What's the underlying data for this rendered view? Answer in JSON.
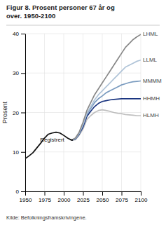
{
  "chart_data": {
    "type": "line",
    "title": [
      "Figur 8. Prosent personer 67 år og",
      "over. 1950-2100"
    ],
    "ylabel": "Prosent",
    "source": "Kilde: Befolkningsframskrivingene.",
    "xlim": [
      1950,
      2100
    ],
    "ylim": [
      0,
      40
    ],
    "xticks": [
      1950,
      1975,
      2000,
      2025,
      2050,
      2075,
      2100
    ],
    "yticks": [
      0,
      10,
      20,
      30,
      40
    ],
    "grid": true,
    "series": [
      {
        "name": "HLMH",
        "color": "#c0c0c0",
        "x": [
          2010,
          2015,
          2020,
          2025,
          2030,
          2035,
          2040,
          2045,
          2050,
          2055,
          2060,
          2065,
          2070,
          2075,
          2080,
          2085,
          2090,
          2095,
          2100
        ],
        "values": [
          13.0,
          13.1,
          14.2,
          15.8,
          18.2,
          19.2,
          20.0,
          20.5,
          20.7,
          20.5,
          20.3,
          20.0,
          19.8,
          19.7,
          19.5,
          19.4,
          19.3,
          19.2,
          19.2
        ]
      },
      {
        "name": "HHMH",
        "color": "#1a3580",
        "x": [
          2010,
          2015,
          2020,
          2025,
          2030,
          2035,
          2040,
          2045,
          2050,
          2055,
          2060,
          2065,
          2070,
          2075,
          2080,
          2085,
          2090,
          2095,
          2100
        ],
        "values": [
          13.0,
          13.2,
          14.5,
          16.3,
          19.0,
          20.3,
          21.5,
          22.3,
          22.8,
          23.0,
          23.2,
          23.3,
          23.4,
          23.5,
          23.5,
          23.5,
          23.5,
          23.5,
          23.5
        ]
      },
      {
        "name": "MMMM",
        "color": "#7a9bbf",
        "x": [
          2010,
          2015,
          2020,
          2025,
          2030,
          2035,
          2040,
          2045,
          2050,
          2055,
          2060,
          2065,
          2070,
          2075,
          2080,
          2085,
          2090,
          2095,
          2100
        ],
        "values": [
          13.0,
          13.3,
          14.7,
          16.8,
          19.5,
          21.0,
          22.5,
          23.5,
          24.2,
          25.0,
          25.5,
          26.0,
          26.5,
          27.0,
          27.3,
          27.6,
          27.8,
          27.9,
          28.0
        ]
      },
      {
        "name": "LLML",
        "color": "#b0c4d8",
        "x": [
          2010,
          2015,
          2020,
          2025,
          2030,
          2035,
          2040,
          2045,
          2050,
          2055,
          2060,
          2065,
          2070,
          2075,
          2080,
          2085,
          2090,
          2095,
          2100
        ],
        "values": [
          13.0,
          13.4,
          14.8,
          17.0,
          19.8,
          21.5,
          23.2,
          24.5,
          25.5,
          26.5,
          27.5,
          28.5,
          29.5,
          30.5,
          31.5,
          32.0,
          32.5,
          33.0,
          33.3
        ]
      },
      {
        "name": "LHML",
        "color": "#888888",
        "x": [
          2010,
          2015,
          2020,
          2025,
          2030,
          2035,
          2040,
          2045,
          2050,
          2055,
          2060,
          2065,
          2070,
          2075,
          2080,
          2085,
          2090,
          2095,
          2100
        ],
        "values": [
          13.0,
          13.5,
          15.0,
          17.5,
          20.5,
          22.5,
          24.5,
          26.0,
          27.5,
          29.0,
          30.5,
          32.0,
          33.5,
          35.0,
          36.5,
          37.5,
          38.5,
          39.2,
          39.8
        ]
      },
      {
        "name": "Registrert",
        "color": "#111111",
        "x": [
          1950,
          1955,
          1960,
          1965,
          1970,
          1975,
          1980,
          1985,
          1990,
          1995,
          2000,
          2005,
          2010,
          2012
        ],
        "values": [
          8.3,
          9.0,
          9.8,
          11.0,
          12.2,
          13.5,
          14.5,
          14.8,
          15.0,
          14.8,
          14.2,
          13.5,
          13.0,
          13.0
        ]
      }
    ]
  }
}
